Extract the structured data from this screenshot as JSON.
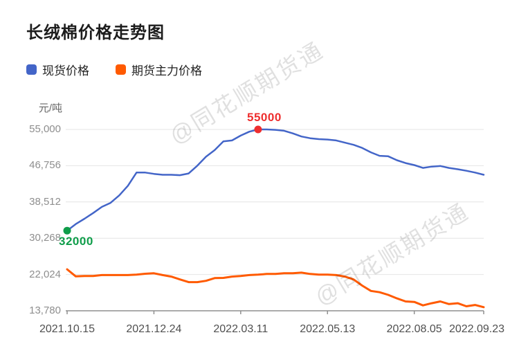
{
  "title": "长绒棉价格走势图",
  "legend": [
    {
      "label": "现货价格",
      "color": "#4365C8"
    },
    {
      "label": "期货主力价格",
      "color": "#FF5A00"
    }
  ],
  "watermark": {
    "text": "@同花顺期货通"
  },
  "colors": {
    "spot_line": "#4365C8",
    "futures_line": "#FF5A00",
    "grid": "#e4e4e4",
    "axis": "#8f8f8f",
    "peak_annotation": "#EE2E2E",
    "start_annotation": "#0F9D4A"
  },
  "chart_data": {
    "type": "line",
    "title": "长绒棉价格走势图",
    "xlabel": "",
    "ylabel": "元/吨",
    "ylim": [
      13780,
      55000
    ],
    "grid": "horizontal",
    "legend_position": "top-left",
    "y_ticks": [
      {
        "value": 55000,
        "label": "55,000"
      },
      {
        "value": 46756,
        "label": "46,756"
      },
      {
        "value": 38512,
        "label": "38,512"
      },
      {
        "value": 30268,
        "label": "30,268"
      },
      {
        "value": 22024,
        "label": "22,024"
      },
      {
        "value": 13780,
        "label": "13,780"
      }
    ],
    "x_tick_labels": [
      "2021.10.15",
      "2021.12.24",
      "2022.03.11",
      "2022.05.13",
      "2022.08.05",
      "2022.09.23"
    ],
    "x_tick_indices": [
      0,
      10,
      20,
      30,
      40,
      48
    ],
    "series": [
      {
        "name": "现货价格",
        "color": "#4365C8",
        "values": [
          32000,
          33500,
          34700,
          36000,
          37400,
          38300,
          40000,
          42200,
          45200,
          45200,
          44900,
          44700,
          44700,
          44600,
          45000,
          46750,
          48800,
          50300,
          52300,
          52500,
          53600,
          54500,
          55000,
          55000,
          54900,
          54700,
          54100,
          53400,
          53000,
          52800,
          52700,
          52500,
          52000,
          51500,
          50800,
          49800,
          49000,
          48900,
          48000,
          47350,
          46900,
          46250,
          46550,
          46700,
          46250,
          45950,
          45600,
          45200,
          44700
        ]
      },
      {
        "name": "期货主力价格",
        "color": "#FF5A00",
        "values": [
          23200,
          21600,
          21700,
          21700,
          21900,
          21900,
          21900,
          21900,
          22000,
          22200,
          22300,
          21900,
          21550,
          20900,
          20300,
          20300,
          20600,
          21200,
          21250,
          21550,
          21700,
          21900,
          22000,
          22150,
          22150,
          22300,
          22300,
          22450,
          22150,
          22000,
          22000,
          21900,
          21550,
          20900,
          19500,
          18300,
          18000,
          17400,
          16600,
          15900,
          15800,
          15000,
          15500,
          15900,
          15300,
          15500,
          14800,
          15100,
          14600
        ]
      }
    ],
    "annotations": [
      {
        "series_index": 0,
        "point_index": 22,
        "value": 55000,
        "label": "55000",
        "color": "#EE2E2E",
        "placement": "above"
      },
      {
        "series_index": 0,
        "point_index": 0,
        "value": 32000,
        "label": "32000",
        "color": "#0F9D4A",
        "placement": "below"
      }
    ]
  }
}
